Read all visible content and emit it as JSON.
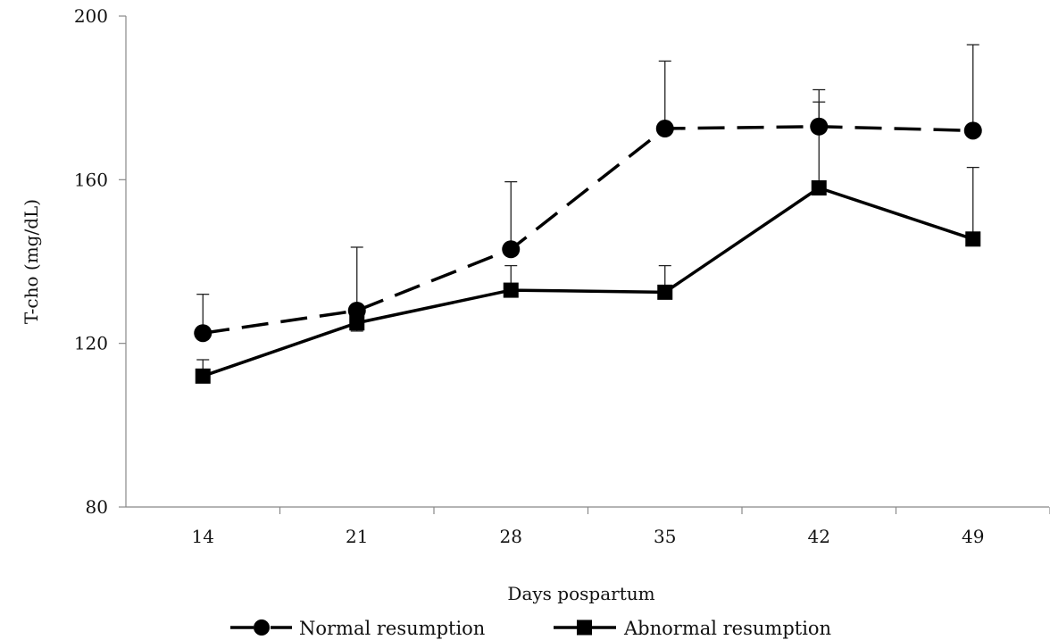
{
  "chart_data": {
    "type": "line",
    "title": "",
    "xlabel": "Days pospartum",
    "ylabel": "T-cho (mg/dL)",
    "categories": [
      "14",
      "21",
      "28",
      "35",
      "42",
      "49"
    ],
    "ylim": [
      80,
      200
    ],
    "yticks": [
      "80",
      "120",
      "160",
      "200"
    ],
    "grid": false,
    "legend_position": "bottom",
    "error_bars": "upper",
    "series": [
      {
        "name": "Normal resumption",
        "line_style": "dashed",
        "marker": "circle",
        "color": "#000000",
        "values": [
          122.5,
          128,
          143,
          172.5,
          173,
          172
        ],
        "error_upper": [
          132,
          143.5,
          159.5,
          189,
          182,
          193
        ]
      },
      {
        "name": "Abnormal resumption",
        "line_style": "solid",
        "marker": "square",
        "color": "#000000",
        "values": [
          112,
          125,
          133,
          132.5,
          158,
          145.5
        ],
        "error_upper": [
          116,
          123,
          139,
          139,
          179,
          163
        ]
      }
    ]
  }
}
